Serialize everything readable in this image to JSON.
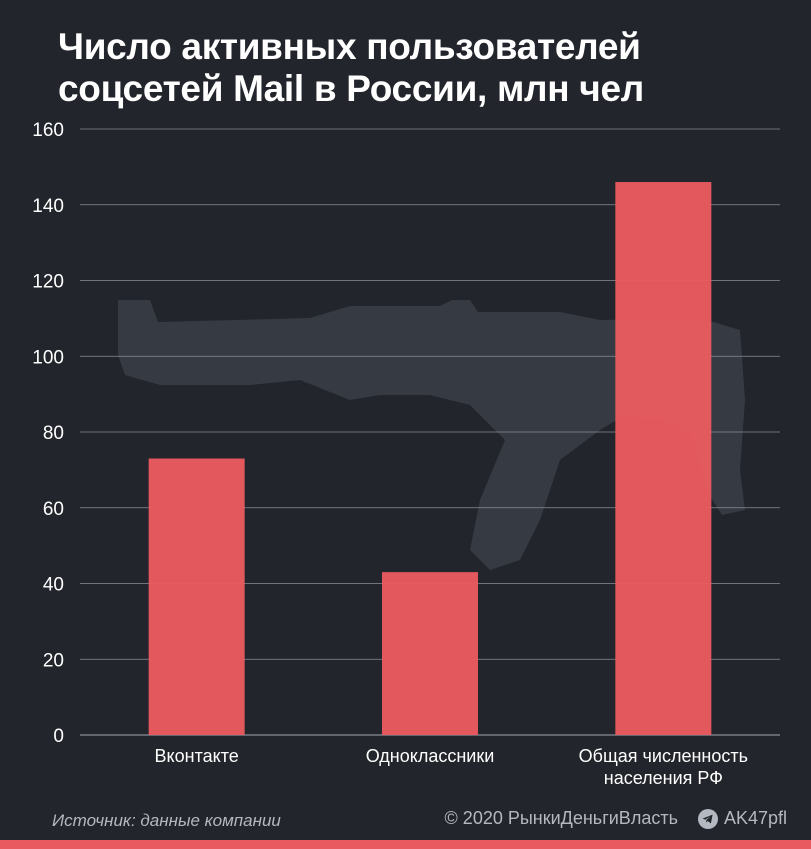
{
  "title": "Число активных пользователей соцсетей Mail в России, млн чел",
  "colors": {
    "background": "#22252b",
    "bar": "#e85a5f",
    "grid": "#8a8e96",
    "text": "#ffffff",
    "muted": "#b4b8c0"
  },
  "chart_data": {
    "type": "bar",
    "title": "Число активных пользователей соцсетей Mail в России, млн чел",
    "categories": [
      [
        "Вконтакте"
      ],
      [
        "Одноклассники"
      ],
      [
        "Общая численность",
        "населения РФ"
      ]
    ],
    "values": [
      73,
      43,
      146
    ],
    "yticks": [
      0,
      20,
      40,
      60,
      80,
      100,
      120,
      140,
      160
    ],
    "ylim": [
      0,
      160
    ],
    "grid": true
  },
  "footer": {
    "source": "Источник: данные компании",
    "copyright": "© 2020  РынкиДеньгиВласть",
    "telegram_icon": "telegram-icon",
    "channel": "AK47pfl"
  }
}
